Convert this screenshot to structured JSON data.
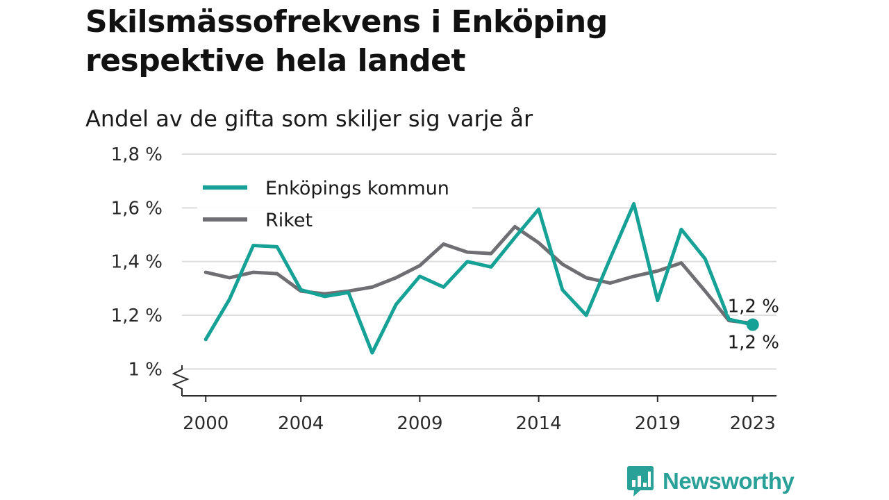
{
  "title": "Skilsmässofrekvens i Enköping respektive hela landet",
  "subtitle": "Andel av de gifta som skiljer sig varje år",
  "brand": {
    "name": "Newsworthy",
    "color": "#2aa198",
    "icon": "bar-chart-speech-bubble-icon"
  },
  "chart_data": {
    "type": "line",
    "x": [
      2000,
      2001,
      2002,
      2003,
      2004,
      2005,
      2006,
      2007,
      2008,
      2009,
      2010,
      2011,
      2012,
      2013,
      2014,
      2015,
      2016,
      2017,
      2018,
      2019,
      2020,
      2021,
      2022,
      2023
    ],
    "series": [
      {
        "name": "Enköpings kommun",
        "color": "#16a196",
        "values": [
          1.11,
          1.26,
          1.46,
          1.455,
          1.295,
          1.27,
          1.285,
          1.06,
          1.24,
          1.345,
          1.305,
          1.4,
          1.38,
          1.49,
          1.595,
          1.295,
          1.2,
          1.41,
          1.615,
          1.255,
          1.52,
          1.41,
          1.185,
          1.165
        ]
      },
      {
        "name": "Riket",
        "color": "#6f6f73",
        "values": [
          1.36,
          1.34,
          1.36,
          1.355,
          1.29,
          1.28,
          1.29,
          1.305,
          1.34,
          1.385,
          1.465,
          1.435,
          1.43,
          1.53,
          1.47,
          1.39,
          1.34,
          1.32,
          1.345,
          1.365,
          1.395,
          1.29,
          1.18,
          1.17
        ]
      }
    ],
    "xticks": [
      2000,
      2004,
      2009,
      2014,
      2019,
      2023
    ],
    "xtick_labels": [
      "2000",
      "2004",
      "2009",
      "2014",
      "2019",
      "2023"
    ],
    "yticks": [
      1.0,
      1.2,
      1.4,
      1.6,
      1.8
    ],
    "ytick_labels": [
      "1 %",
      "1,2 %",
      "1,4 %",
      "1,6 %",
      "1,8 %"
    ],
    "ylim": [
      0.9,
      1.8
    ],
    "xlim": [
      1999,
      2024
    ],
    "y_axis_break": true,
    "grid": "horizontal",
    "legend_position": "top-left",
    "end_labels": [
      {
        "series": "Enköpings kommun",
        "text": "1,2 %",
        "position": "above"
      },
      {
        "series": "Riket",
        "text": "1,2 %",
        "position": "below"
      }
    ]
  }
}
